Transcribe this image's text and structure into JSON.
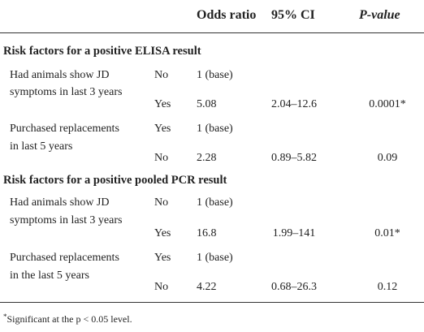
{
  "header": {
    "odds": "Odds ratio",
    "ci": "95% CI",
    "p": "P-value"
  },
  "sections": [
    {
      "title": "Risk factors for a positive ELISA result",
      "factors": [
        {
          "line1": "Had animals show JD",
          "line2": "symptoms in last 3 years",
          "base_level": "No",
          "base_odds": "1 (base)",
          "level": "Yes",
          "odds": "5.08",
          "ci": "2.04–12.6",
          "p": "0.0001*"
        },
        {
          "line1": "Purchased replacements",
          "line2": "in last 5 years",
          "base_level": "Yes",
          "base_odds": "1 (base)",
          "level": "No",
          "odds": "2.28",
          "ci": "0.89–5.82",
          "p": "0.09"
        }
      ]
    },
    {
      "title": "Risk factors for a positive pooled PCR result",
      "factors": [
        {
          "line1": "Had animals show JD",
          "line2": "symptoms in last 3 years",
          "base_level": "No",
          "base_odds": "1 (base)",
          "level": "Yes",
          "odds": "16.8",
          "ci": "1.99–141",
          "p": "0.01*"
        },
        {
          "line1": "Purchased replacements",
          "line2": "in the last 5 years",
          "base_level": "Yes",
          "base_odds": "1 (base)",
          "level": "No",
          "odds": "4.22",
          "ci": "0.68–26.3",
          "p": "0.12"
        }
      ]
    }
  ],
  "footnote": {
    "mark": "*",
    "text": "Significant at the p < 0.05 level."
  }
}
